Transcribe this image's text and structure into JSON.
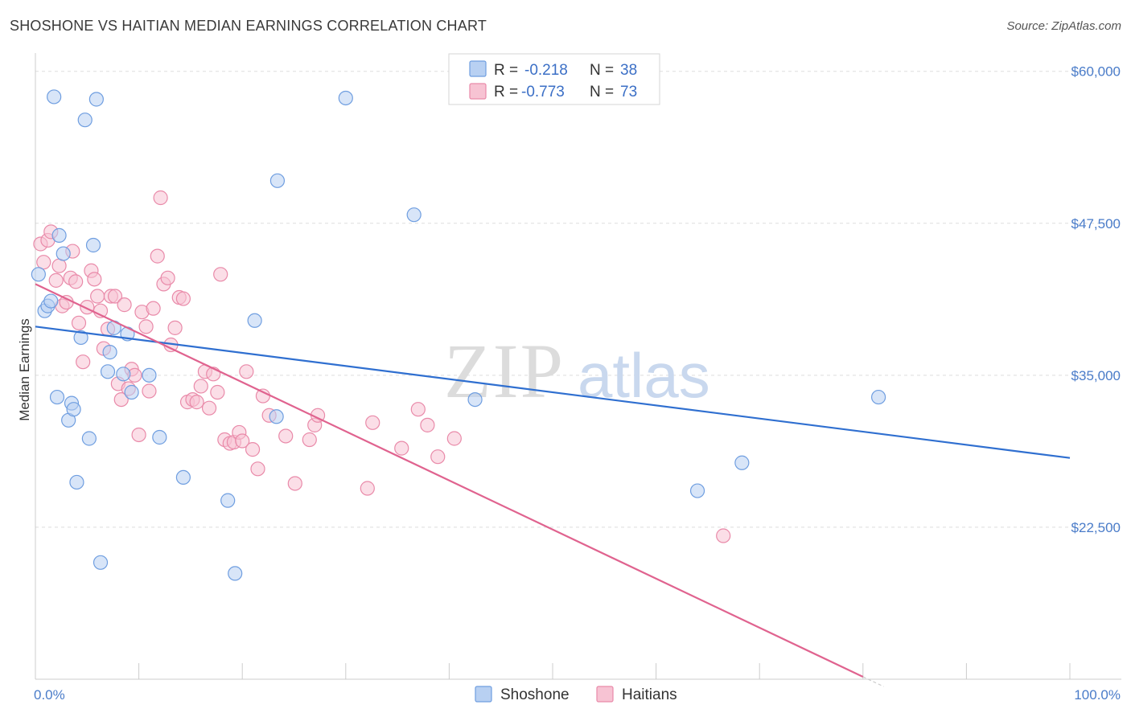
{
  "title": "SHOSHONE VS HAITIAN MEDIAN EARNINGS CORRELATION CHART",
  "source": "Source: ZipAtlas.com",
  "watermark": {
    "zip": "ZIP",
    "atlas": "atlas"
  },
  "colors": {
    "shoshone_fill": "#b8d0f2",
    "shoshone_stroke": "#6f9ee0",
    "shoshone_line": "#2f6fd0",
    "haitian_fill": "#f7c3d3",
    "haitian_stroke": "#e98aa9",
    "haitian_line": "#e0638f",
    "grid": "#dddddd",
    "label": "#4a7cc9"
  },
  "legend": {
    "rows": [
      {
        "r_label": "R =",
        "r_value": "-0.218",
        "n_label": "N =",
        "n_value": "38"
      },
      {
        "r_label": "R =",
        "r_value": "-0.773",
        "n_label": "N =",
        "n_value": "73"
      }
    ]
  },
  "bottom_legend": [
    "Shoshone",
    "Haitians"
  ],
  "chart_data": {
    "type": "scatter",
    "title": "SHOSHONE VS HAITIAN MEDIAN EARNINGS CORRELATION CHART",
    "xlabel": "",
    "ylabel": "Median Earnings",
    "xlim": [
      0,
      100
    ],
    "ylim": [
      10000,
      61500
    ],
    "x_tick_labels": [
      "0.0%",
      "100.0%"
    ],
    "y_ticks": [
      22500,
      35000,
      47500,
      60000
    ],
    "y_tick_labels": [
      "$22,500",
      "$35,000",
      "$47,500",
      "$60,000"
    ],
    "series": [
      {
        "name": "Shoshone",
        "r": -0.218,
        "n": 38,
        "trend": {
          "x": [
            0,
            100
          ],
          "y": [
            39000,
            28200
          ]
        },
        "points": [
          [
            0.3,
            43300
          ],
          [
            0.9,
            40300
          ],
          [
            1.2,
            40700
          ],
          [
            1.5,
            41100
          ],
          [
            1.8,
            57900
          ],
          [
            2.1,
            33200
          ],
          [
            2.3,
            46500
          ],
          [
            2.7,
            45000
          ],
          [
            3.2,
            31300
          ],
          [
            3.5,
            32700
          ],
          [
            3.7,
            32200
          ],
          [
            4.0,
            26200
          ],
          [
            4.4,
            38100
          ],
          [
            4.8,
            56000
          ],
          [
            5.2,
            29800
          ],
          [
            5.6,
            45700
          ],
          [
            5.9,
            57700
          ],
          [
            6.3,
            19600
          ],
          [
            7.2,
            36900
          ],
          [
            7.6,
            38900
          ],
          [
            8.5,
            35100
          ],
          [
            8.9,
            38400
          ],
          [
            9.3,
            33600
          ],
          [
            12.0,
            29900
          ],
          [
            14.3,
            26600
          ],
          [
            18.6,
            24700
          ],
          [
            19.3,
            18700
          ],
          [
            21.2,
            39500
          ],
          [
            23.3,
            31600
          ],
          [
            23.4,
            51000
          ],
          [
            30.0,
            57800
          ],
          [
            36.6,
            48200
          ],
          [
            42.5,
            33000
          ],
          [
            64.0,
            25500
          ],
          [
            68.3,
            27800
          ],
          [
            81.5,
            33200
          ],
          [
            7.0,
            35300
          ],
          [
            11.0,
            35000
          ]
        ]
      },
      {
        "name": "Haitians",
        "r": -0.773,
        "n": 73,
        "trend": {
          "x": [
            0,
            80
          ],
          "y": [
            42500,
            10200
          ]
        },
        "trend_dashed": {
          "x": [
            80,
            82
          ],
          "y": [
            10200,
            9400
          ]
        },
        "points": [
          [
            0.5,
            45800
          ],
          [
            0.8,
            44300
          ],
          [
            1.2,
            46100
          ],
          [
            1.5,
            46800
          ],
          [
            2.0,
            42800
          ],
          [
            2.3,
            44000
          ],
          [
            2.6,
            40700
          ],
          [
            3.0,
            41000
          ],
          [
            3.4,
            43000
          ],
          [
            3.6,
            45200
          ],
          [
            3.9,
            42700
          ],
          [
            4.2,
            39300
          ],
          [
            4.6,
            36100
          ],
          [
            5.0,
            40600
          ],
          [
            5.4,
            43600
          ],
          [
            5.7,
            42900
          ],
          [
            6.0,
            41500
          ],
          [
            6.3,
            40300
          ],
          [
            6.6,
            37200
          ],
          [
            7.0,
            38800
          ],
          [
            7.3,
            41500
          ],
          [
            7.7,
            41500
          ],
          [
            8.0,
            34300
          ],
          [
            8.3,
            33000
          ],
          [
            8.6,
            40800
          ],
          [
            9.0,
            33900
          ],
          [
            9.3,
            35500
          ],
          [
            9.6,
            35000
          ],
          [
            10.0,
            30100
          ],
          [
            10.3,
            40200
          ],
          [
            10.7,
            39000
          ],
          [
            11.0,
            33700
          ],
          [
            11.4,
            40500
          ],
          [
            11.8,
            44800
          ],
          [
            12.1,
            49600
          ],
          [
            12.4,
            42500
          ],
          [
            12.8,
            43000
          ],
          [
            13.1,
            37500
          ],
          [
            13.5,
            38900
          ],
          [
            13.9,
            41400
          ],
          [
            14.3,
            41300
          ],
          [
            14.7,
            32800
          ],
          [
            15.2,
            33000
          ],
          [
            15.6,
            32800
          ],
          [
            16.0,
            34100
          ],
          [
            16.4,
            35300
          ],
          [
            16.8,
            32300
          ],
          [
            17.2,
            35100
          ],
          [
            17.6,
            33600
          ],
          [
            17.9,
            43300
          ],
          [
            18.3,
            29700
          ],
          [
            18.8,
            29400
          ],
          [
            19.2,
            29500
          ],
          [
            19.7,
            30300
          ],
          [
            20.0,
            29600
          ],
          [
            20.4,
            35300
          ],
          [
            21.0,
            28900
          ],
          [
            21.5,
            27300
          ],
          [
            22.0,
            33300
          ],
          [
            22.6,
            31700
          ],
          [
            24.2,
            30000
          ],
          [
            25.1,
            26100
          ],
          [
            26.5,
            29700
          ],
          [
            27.0,
            30900
          ],
          [
            27.3,
            31700
          ],
          [
            32.1,
            25700
          ],
          [
            32.6,
            31100
          ],
          [
            35.4,
            29000
          ],
          [
            37.0,
            32200
          ],
          [
            37.9,
            30900
          ],
          [
            38.9,
            28300
          ],
          [
            40.5,
            29800
          ],
          [
            66.5,
            21800
          ]
        ]
      }
    ]
  }
}
